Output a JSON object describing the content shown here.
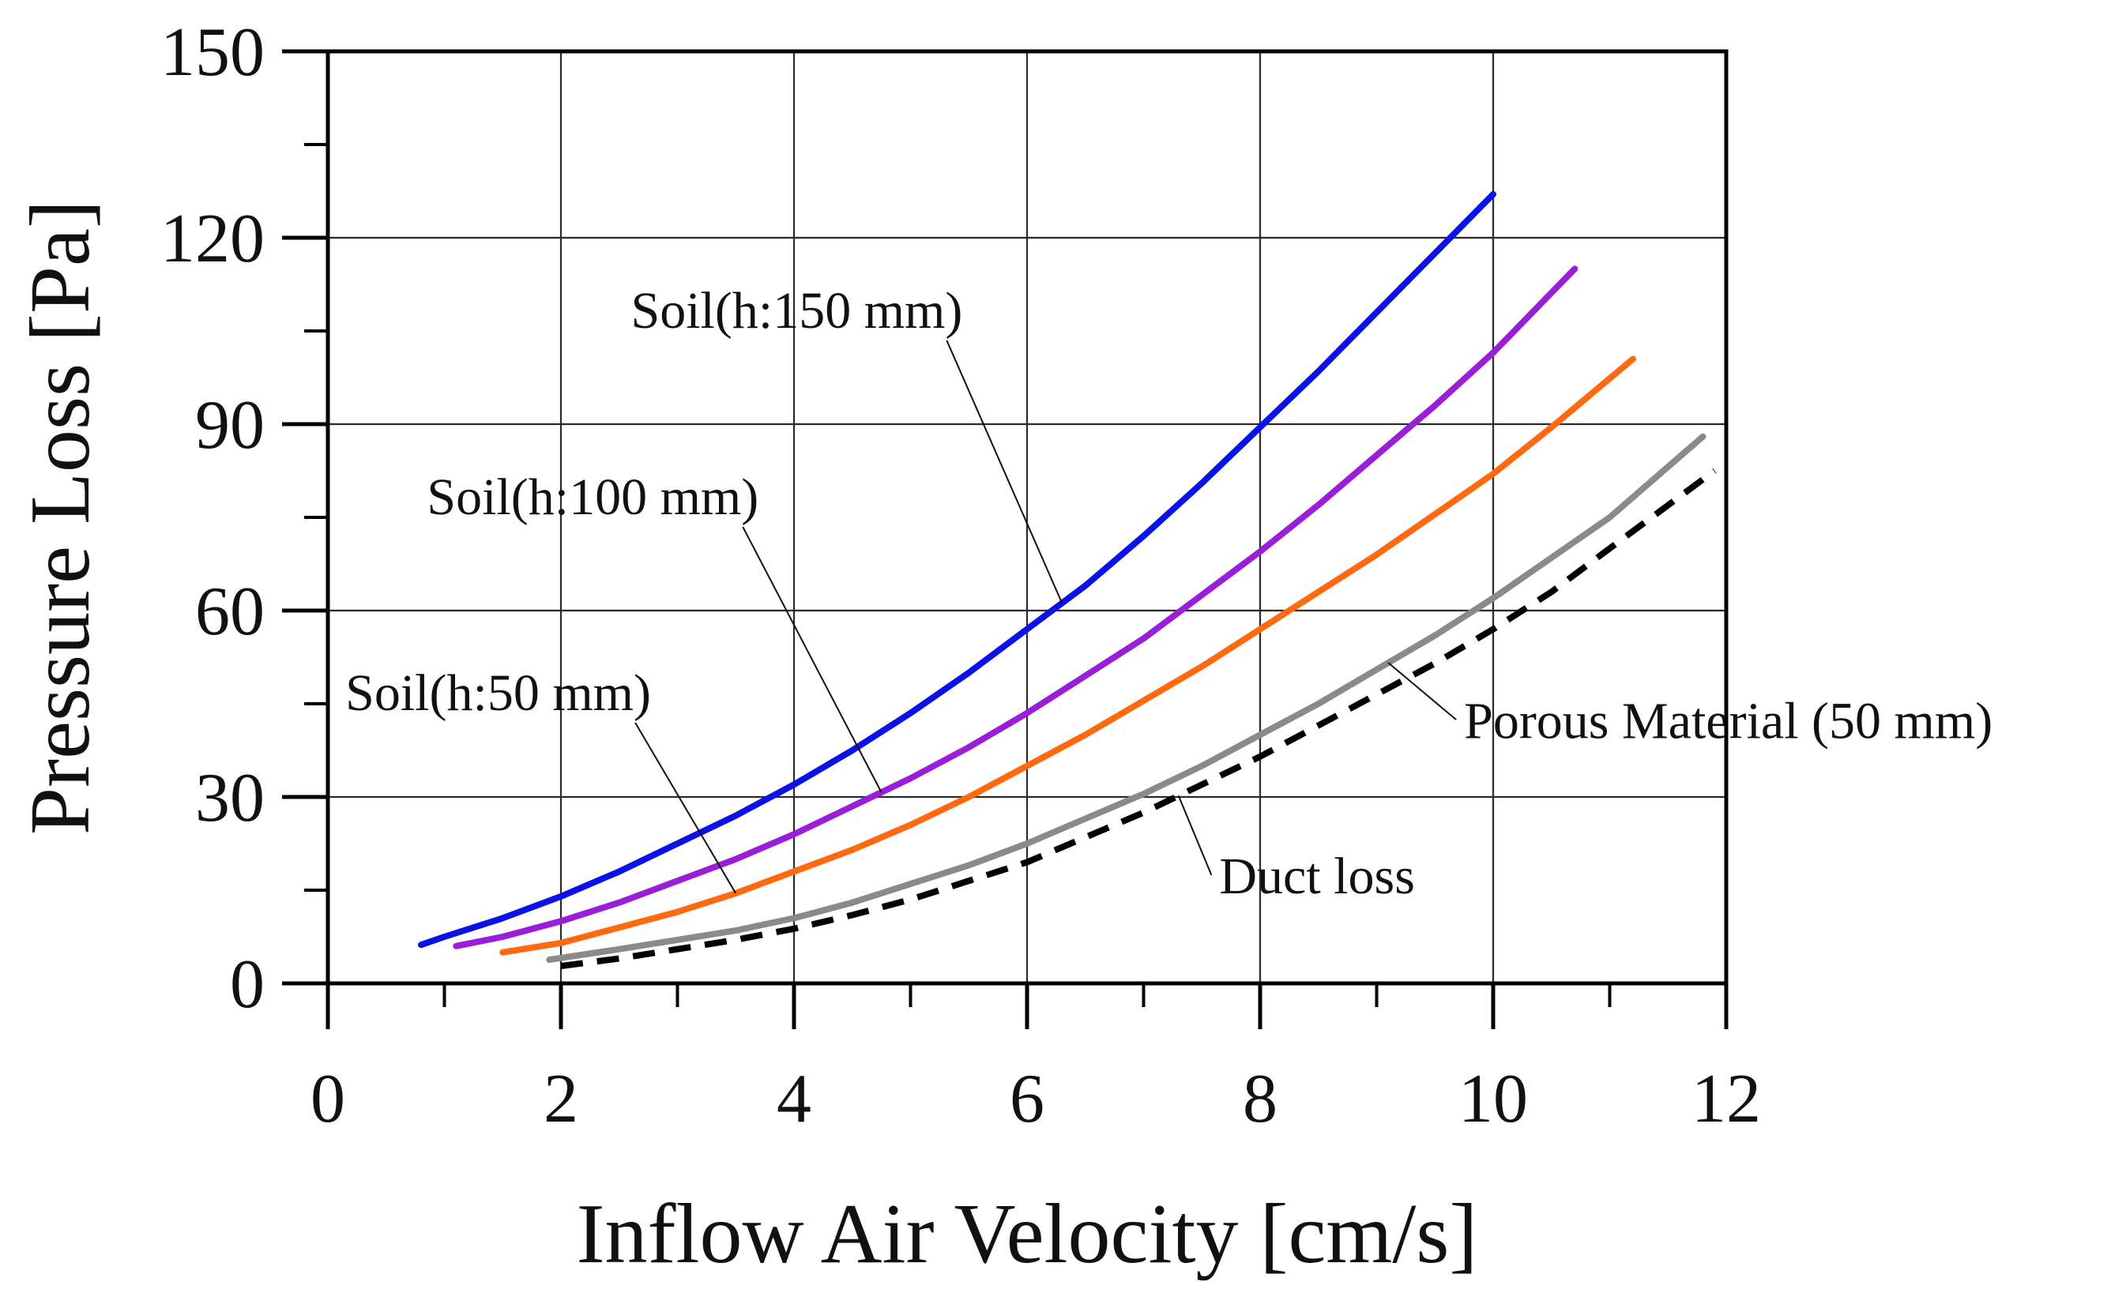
{
  "chart_data": {
    "type": "line",
    "title": "",
    "xlabel": "Inflow Air Velocity [cm/s]",
    "ylabel": "Pressure Loss [Pa]",
    "xlim": [
      0,
      12
    ],
    "ylim": [
      0,
      150
    ],
    "xticks": [
      "0",
      "2",
      "4",
      "6",
      "8",
      "10",
      "12"
    ],
    "yticks": [
      "0",
      "30",
      "60",
      "90",
      "120",
      "150"
    ],
    "grid": true,
    "legend": "none",
    "series": [
      {
        "label": "Soil(h:150 mm)",
        "color": "#0a12e8",
        "dash": "solid",
        "x": [
          0.8,
          1,
          1.5,
          2,
          2.5,
          3,
          3.5,
          4,
          4.5,
          5,
          5.5,
          6,
          6.5,
          7,
          7.5,
          8,
          8.5,
          9,
          9.5,
          10
        ],
        "y": [
          6.2,
          7.5,
          10.5,
          14,
          18,
          22.5,
          27,
          32,
          37.5,
          43.5,
          50,
          57,
          64,
          72,
          80.5,
          89.5,
          98.5,
          108,
          117.5,
          127
        ]
      },
      {
        "label": "Soil(h:100 mm)",
        "color": "#9a1ed8",
        "dash": "solid",
        "x": [
          1.1,
          1.5,
          2,
          2.5,
          3,
          3.5,
          4,
          4.5,
          5,
          5.5,
          6,
          6.5,
          7,
          7.5,
          8,
          8.5,
          9,
          9.5,
          10,
          10.7
        ],
        "y": [
          6,
          7.5,
          10,
          13,
          16.5,
          20,
          24,
          28.5,
          33,
          38,
          43.5,
          49.5,
          55.5,
          62.5,
          69.5,
          77,
          85,
          93,
          101.5,
          115
        ]
      },
      {
        "label": "Soil(h:50 mm)",
        "color": "#ff6a10",
        "dash": "solid",
        "x": [
          1.5,
          2,
          2.5,
          3,
          3.5,
          4,
          4.5,
          5,
          5.5,
          6,
          6.5,
          7,
          7.5,
          8,
          8.5,
          9,
          9.5,
          10,
          10.5,
          11.2
        ],
        "y": [
          5,
          6.5,
          9,
          11.5,
          14.5,
          18,
          21.5,
          25.5,
          30,
          35,
          40,
          45.5,
          51,
          57,
          63,
          69,
          75.5,
          82,
          89.5,
          100.5
        ]
      },
      {
        "label": "Porous Material (50 mm)",
        "color": "#8a8a8a",
        "dash": "solid",
        "x": [
          1.9,
          2.5,
          3,
          3.5,
          4,
          4.5,
          5,
          5.5,
          6,
          6.5,
          7,
          7.5,
          8,
          8.5,
          9,
          9.5,
          10,
          10.5,
          11,
          11.8
        ],
        "y": [
          3.8,
          5.5,
          7,
          8.5,
          10.5,
          13,
          16,
          19,
          22.5,
          26.5,
          30.5,
          35,
          40,
          45,
          50.5,
          56,
          62,
          68.5,
          75,
          88
        ]
      },
      {
        "label": "Duct loss",
        "color": "#000000",
        "dash": "dashed",
        "x": [
          2,
          2.5,
          3,
          3.5,
          4,
          4.5,
          5,
          5.5,
          6,
          6.5,
          7,
          7.5,
          8,
          8.5,
          9,
          9.5,
          10,
          10.5,
          11,
          11.9
        ],
        "y": [
          2.8,
          4,
          5.5,
          7,
          8.8,
          11,
          13.5,
          16.5,
          19.5,
          23.5,
          27.5,
          32,
          36.5,
          41.5,
          46.5,
          51.5,
          57,
          63,
          70,
          82.5
        ]
      }
    ],
    "annotations": [
      {
        "text": "Soil(h:150 mm)",
        "series": 0,
        "point_x": 6.3,
        "text_x": 2.6,
        "text_y": 105.5
      },
      {
        "text": "Soil(h:100 mm)",
        "series": 1,
        "point_x": 4.75,
        "text_x": 0.85,
        "text_y": 75.5
      },
      {
        "text": "Soil(h:50 mm)",
        "series": 2,
        "point_x": 3.5,
        "text_x": 0.15,
        "text_y": 44
      },
      {
        "text": "Porous Material (50 mm)",
        "series": 3,
        "point_x": 9.1,
        "text_x": 9.75,
        "text_y": 39.5
      },
      {
        "text": "Duct loss",
        "series": 4,
        "point_x": 7.3,
        "text_x": 7.65,
        "text_y": 14.5
      }
    ]
  }
}
